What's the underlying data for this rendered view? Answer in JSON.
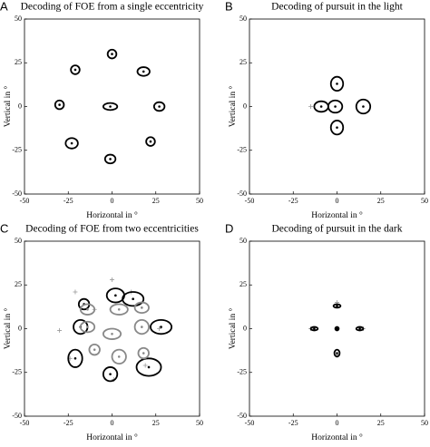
{
  "chart_data": [
    {
      "type": "scatter",
      "letter": "A",
      "title": "Decoding of FOE from a single eccentricity",
      "xlabel": "Horizontal in °",
      "ylabel": "Vertical in °",
      "xlim": [
        -50,
        50
      ],
      "ylim": [
        -50,
        50
      ],
      "xticks": [
        -50,
        -25,
        0,
        25,
        50
      ],
      "yticks": [
        -50,
        -25,
        0,
        25,
        50
      ],
      "series": [
        {
          "color": "#000000",
          "x": [
            0,
            -21,
            18,
            -30,
            -1,
            27,
            -23,
            22,
            -1
          ],
          "y": [
            30,
            21,
            20,
            1,
            0,
            0,
            -21,
            -20,
            -30
          ],
          "rx": [
            2.5,
            2.5,
            3.5,
            2.5,
            4,
            3,
            3.5,
            2.5,
            3
          ],
          "ry": [
            2.5,
            2.5,
            2.5,
            2.5,
            2,
            2.5,
            3,
            2.5,
            2.5
          ]
        }
      ],
      "markers": {
        "color": "#999999",
        "x": [],
        "y": []
      }
    },
    {
      "type": "scatter",
      "letter": "B",
      "title": "Decoding of pursuit in the light",
      "xlabel": "Horizontal in °",
      "ylabel": "Vertical in °",
      "xlim": [
        -50,
        50
      ],
      "ylim": [
        -50,
        50
      ],
      "xticks": [
        -50,
        -25,
        0,
        25,
        50
      ],
      "yticks": [
        -50,
        -25,
        0,
        25,
        50
      ],
      "series": [
        {
          "color": "#000000",
          "x": [
            0,
            -9,
            -1,
            15,
            0
          ],
          "y": [
            13,
            0,
            0,
            0,
            -12
          ],
          "rx": [
            3.5,
            4,
            4,
            4,
            3.5
          ],
          "ry": [
            4,
            3,
            3.5,
            4,
            4
          ]
        }
      ],
      "markers": {
        "color": "#999999",
        "x": [
          -15
        ],
        "y": [
          0
        ]
      }
    },
    {
      "type": "scatter",
      "letter": "C",
      "title": "Decoding of FOE from two eccentricities",
      "xlabel": "Horizontal in °",
      "ylabel": "Vertical in °",
      "xlim": [
        -50,
        50
      ],
      "ylim": [
        -50,
        50
      ],
      "xticks": [
        -50,
        -25,
        0,
        25,
        50
      ],
      "yticks": [
        -50,
        -25,
        0,
        25,
        50
      ],
      "series": [
        {
          "color": "#000000",
          "x": [
            2,
            12,
            -16,
            -18,
            28,
            -21,
            -1,
            21
          ],
          "y": [
            19,
            17,
            14,
            1,
            1,
            -17,
            -26,
            -22
          ],
          "rx": [
            5,
            6,
            3,
            4,
            6,
            4,
            4,
            7
          ],
          "ry": [
            4,
            4,
            3,
            4,
            4,
            5,
            4,
            5
          ]
        },
        {
          "color": "#888888",
          "x": [
            -14,
            4,
            17,
            -14,
            17,
            0,
            -10,
            4,
            18
          ],
          "y": [
            11,
            11,
            12,
            1,
            1,
            -3,
            -12,
            -16,
            -14
          ],
          "rx": [
            4,
            5,
            4,
            4,
            4,
            5,
            3,
            4,
            3
          ],
          "ry": [
            3,
            3,
            3,
            3,
            4,
            3,
            3,
            4,
            3
          ]
        }
      ],
      "markers": {
        "color": "#999999",
        "x": [
          -21,
          0,
          11,
          -30,
          27,
          -24,
          19,
          1,
          -10
        ],
        "y": [
          21,
          28,
          21,
          -1,
          0,
          -17,
          -21,
          -29,
          11
        ]
      }
    },
    {
      "type": "scatter",
      "letter": "D",
      "title": "Decoding of pursuit in the dark",
      "xlabel": "Horizontal in °",
      "ylabel": "Vertical in °",
      "xlim": [
        -50,
        50
      ],
      "ylim": [
        -50,
        50
      ],
      "xticks": [
        -50,
        -25,
        0,
        25,
        50
      ],
      "yticks": [
        -50,
        -25,
        0,
        25,
        50
      ],
      "series": [
        {
          "color": "#000000",
          "x": [
            0,
            -13,
            0,
            13,
            0
          ],
          "y": [
            13,
            0,
            0,
            0,
            -14
          ],
          "rx": [
            2,
            2,
            1,
            2,
            1.5
          ],
          "ry": [
            1,
            1,
            1,
            1,
            2
          ]
        }
      ],
      "markers": {
        "color": "#999999",
        "x": [
          0,
          -15,
          15,
          0
        ],
        "y": [
          15,
          0,
          0,
          -15
        ]
      }
    }
  ]
}
